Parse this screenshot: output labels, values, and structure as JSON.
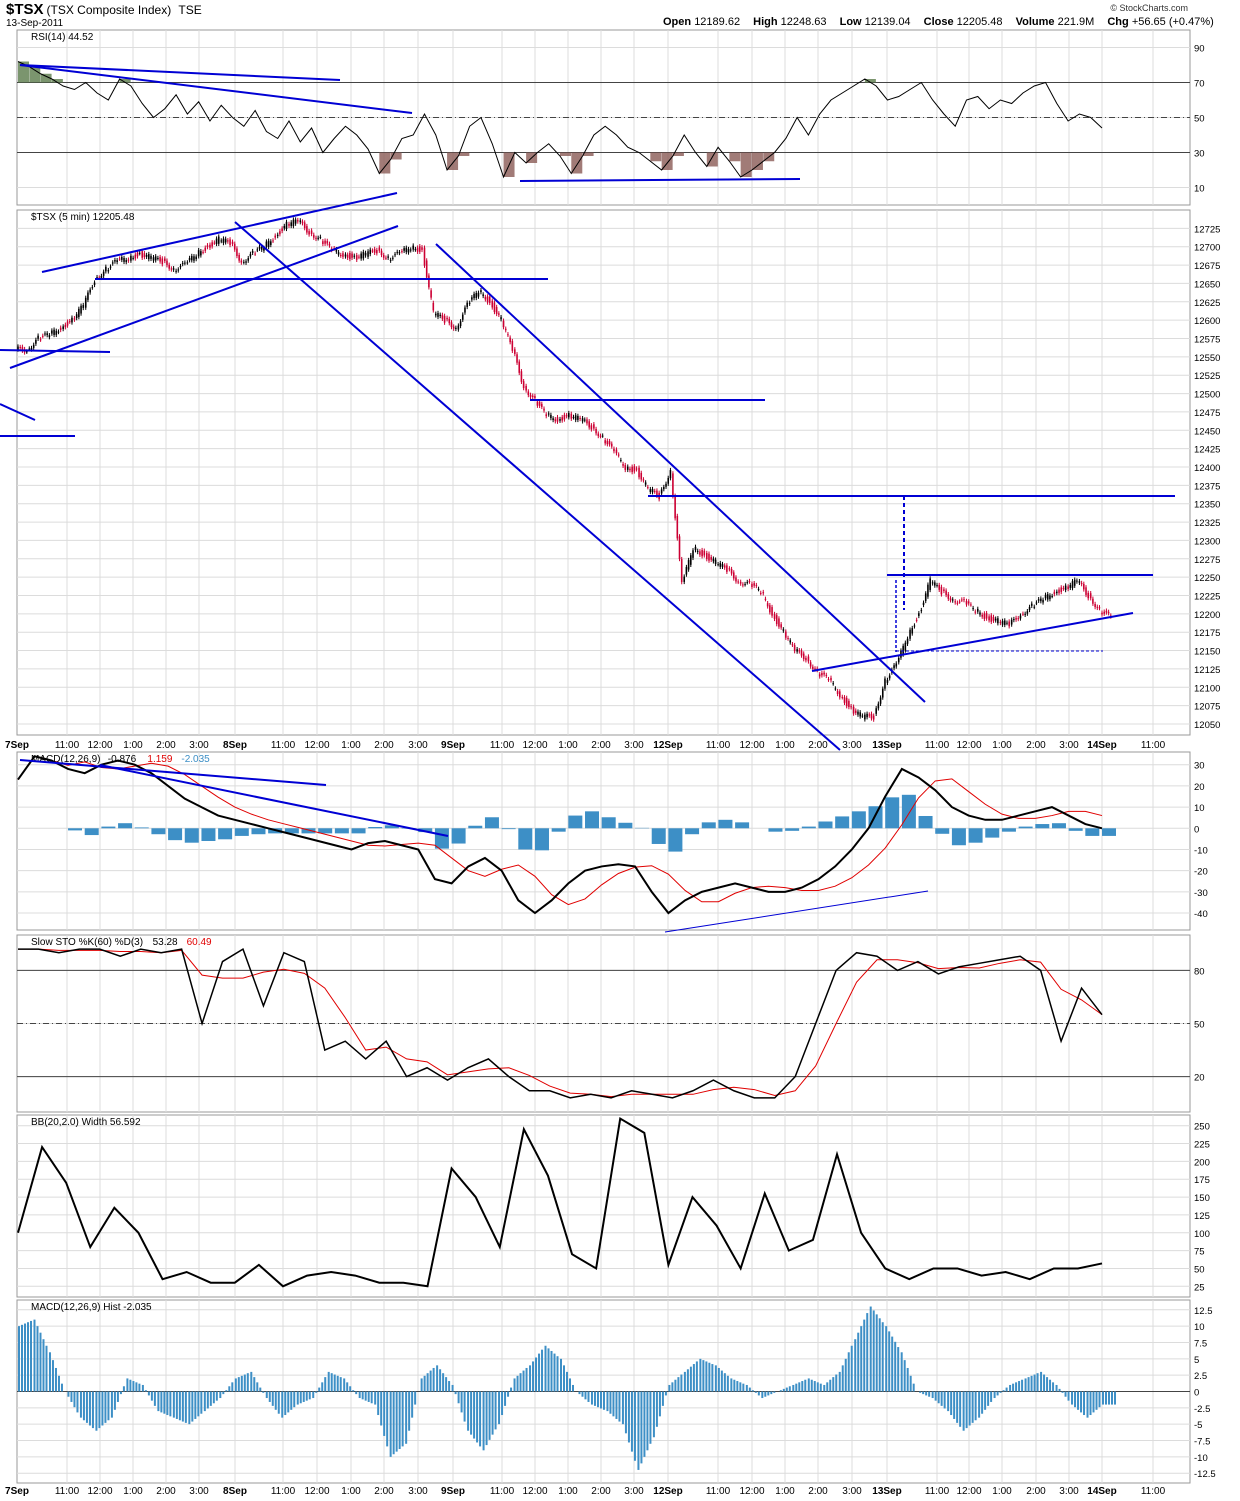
{
  "header": {
    "symbol": "$TSX",
    "name": "(TSX Composite Index)",
    "exchange": "TSE",
    "date": "13-Sep-2011",
    "copyright": "© StockCharts.com",
    "open_label": "Open",
    "open": "12189.62",
    "high_label": "High",
    "high": "12248.63",
    "low_label": "Low",
    "low": "12139.04",
    "close_label": "Close",
    "close": "12205.48",
    "volume_label": "Volume",
    "volume": "221.9M",
    "chg_label": "Chg",
    "chg": "+56.65 (+0.47%)"
  },
  "time_axis": {
    "labels": [
      "7Sep",
      "11:00",
      "12:00",
      "1:00",
      "2:00",
      "3:00",
      "8Sep",
      "11:00",
      "12:00",
      "1:00",
      "2:00",
      "3:00",
      "9Sep",
      "11:00",
      "12:00",
      "1:00",
      "2:00",
      "3:00",
      "12Sep",
      "11:00",
      "12:00",
      "1:00",
      "2:00",
      "3:00",
      "13Sep",
      "11:00",
      "12:00",
      "1:00",
      "2:00",
      "3:00",
      "14Sep",
      "11:00"
    ],
    "bold": [
      "7Sep",
      "8Sep",
      "9Sep",
      "12Sep",
      "13Sep",
      "14Sep"
    ]
  },
  "colors": {
    "trendline": "#0000d4",
    "down": "#cc0033",
    "up": "#000000",
    "hist": "#3d8fc6",
    "rsi_over": "#5a7a4a",
    "rsi_under": "#8a5a55",
    "signal": "#e00000",
    "grid": "#dcdcdc"
  },
  "chart_data": [
    {
      "type": "line",
      "panel": "rsi",
      "title": "RSI(14) 44.52",
      "ylim": [
        0,
        100
      ],
      "yticks": [
        10,
        30,
        50,
        70,
        90
      ],
      "levels": [
        30,
        70
      ],
      "last": 44.52,
      "series": [
        {
          "name": "RSI(14)",
          "values": [
            82,
            79,
            75,
            72,
            68,
            66,
            70,
            64,
            60,
            72,
            68,
            58,
            50,
            55,
            63,
            52,
            59,
            48,
            57,
            50,
            45,
            54,
            42,
            38,
            48,
            36,
            44,
            30,
            38,
            45,
            40,
            32,
            18,
            26,
            38,
            40,
            52,
            40,
            20,
            28,
            45,
            50,
            35,
            16,
            30,
            24,
            30,
            35,
            28,
            18,
            28,
            40,
            45,
            40,
            33,
            30,
            25,
            20,
            28,
            40,
            30,
            22,
            33,
            25,
            16,
            20,
            25,
            30,
            38,
            50,
            40,
            52,
            60,
            64,
            68,
            72,
            68,
            60,
            62,
            66,
            70,
            60,
            52,
            45,
            60,
            62,
            55,
            60,
            58,
            64,
            68,
            70,
            58,
            48,
            52,
            50,
            44
          ]
        }
      ]
    },
    {
      "type": "candlestick",
      "panel": "price",
      "title": "$TSX (5 min) 12205.48",
      "ylim": [
        12035,
        12750
      ],
      "yticks": [
        12050,
        12075,
        12100,
        12125,
        12150,
        12175,
        12200,
        12225,
        12250,
        12275,
        12300,
        12325,
        12350,
        12375,
        12400,
        12425,
        12450,
        12475,
        12500,
        12525,
        12550,
        12575,
        12600,
        12625,
        12650,
        12675,
        12700,
        12725
      ],
      "series": [
        {
          "name": "close",
          "values": [
            12560,
            12575,
            12580,
            12590,
            12600,
            12620,
            12655,
            12670,
            12680,
            12685,
            12690,
            12685,
            12680,
            12670,
            12675,
            12690,
            12700,
            12710,
            12705,
            12680,
            12690,
            12700,
            12715,
            12730,
            12735,
            12720,
            12710,
            12695,
            12690,
            12685,
            12690,
            12695,
            12685,
            12690,
            12700,
            12695,
            12610,
            12600,
            12590,
            12620,
            12640,
            12625,
            12600,
            12560,
            12510,
            12490,
            12470,
            12465,
            12470,
            12465,
            12455,
            12440,
            12420,
            12400,
            12395,
            12370,
            12360,
            12395,
            12240,
            12290,
            12280,
            12270,
            12260,
            12245,
            12240,
            12230,
            12200,
            12175,
            12150,
            12140,
            12120,
            12110,
            12090,
            12070,
            12060,
            12060,
            12110,
            12130,
            12170,
            12200,
            12245,
            12230,
            12220,
            12215,
            12205,
            12195,
            12190,
            12185,
            12200,
            12210,
            12220,
            12230,
            12235,
            12245,
            12225,
            12205,
            12195
          ]
        }
      ],
      "annotations": [
        "12350",
        "12250",
        "12150",
        "12500",
        "12660"
      ]
    },
    {
      "type": "line",
      "panel": "macd",
      "title": "MACD(12,26,9)",
      "values_text": [
        "-0.876",
        "1.159",
        "-2.035"
      ],
      "ylim": [
        -48,
        36
      ],
      "yticks": [
        30,
        20,
        10,
        0,
        -10,
        -20,
        -30,
        -40
      ],
      "series": [
        {
          "name": "MACD",
          "values": [
            23,
            34,
            32,
            28,
            26,
            30,
            32,
            30,
            26,
            20,
            14,
            10,
            6,
            4,
            2,
            0,
            -2,
            -4,
            -6,
            -8,
            -10,
            -7,
            -6,
            -8,
            -10,
            -24,
            -26,
            -18,
            -14,
            -20,
            -34,
            -40,
            -34,
            -26,
            -20,
            -18,
            -17,
            -18,
            -30,
            -40,
            -34,
            -30,
            -28,
            -26,
            -28,
            -30,
            -30,
            -28,
            -24,
            -18,
            -10,
            0,
            15,
            28,
            24,
            18,
            10,
            6,
            4,
            4,
            6,
            8,
            10,
            6,
            2,
            0
          ]
        }
      ]
    },
    {
      "type": "line",
      "panel": "sto",
      "title": "Slow STO %K(60) %D(3)",
      "values_text": [
        "53.28",
        "60.49"
      ],
      "ylim": [
        0,
        100
      ],
      "yticks": [
        20,
        50,
        80
      ],
      "series": [
        {
          "name": "%K",
          "values": [
            92,
            92,
            90,
            92,
            92,
            88,
            92,
            90,
            92,
            50,
            85,
            92,
            60,
            90,
            85,
            35,
            40,
            30,
            40,
            20,
            25,
            18,
            25,
            30,
            20,
            12,
            12,
            8,
            10,
            8,
            12,
            10,
            8,
            12,
            18,
            12,
            8,
            8,
            20,
            50,
            80,
            90,
            88,
            80,
            85,
            78,
            82,
            84,
            86,
            88,
            80,
            40,
            70,
            55
          ]
        }
      ]
    },
    {
      "type": "line",
      "panel": "bbw",
      "title": "BB(20,2.0) Width 56.592",
      "ylim": [
        10,
        265
      ],
      "yticks": [
        25,
        50,
        75,
        100,
        125,
        150,
        175,
        200,
        225,
        250
      ],
      "series": [
        {
          "name": "Width",
          "values": [
            100,
            220,
            170,
            80,
            135,
            100,
            35,
            45,
            30,
            30,
            55,
            25,
            40,
            45,
            40,
            30,
            30,
            25,
            190,
            150,
            80,
            245,
            180,
            70,
            50,
            260,
            240,
            55,
            150,
            110,
            50,
            155,
            75,
            90,
            210,
            100,
            50,
            35,
            50,
            50,
            40,
            45,
            35,
            50,
            50,
            57
          ]
        }
      ]
    },
    {
      "type": "bar",
      "panel": "hist",
      "title": "MACD(12,26,9) Hist -2.035",
      "ylim": [
        -14,
        14
      ],
      "yticks": [
        12.5,
        10,
        7.5,
        5,
        2.5,
        0,
        -2.5,
        -5,
        -7.5,
        -10,
        -12.5
      ],
      "series": [
        {
          "name": "Hist",
          "values": [
            10,
            11,
            6,
            0,
            -4,
            -6,
            -4,
            2,
            1,
            -3,
            -4,
            -5,
            -3,
            -1,
            2,
            3,
            -1,
            -4,
            -2,
            -1,
            3,
            2,
            -1,
            -2,
            -10,
            -8,
            2,
            4,
            1,
            -6,
            -9,
            -5,
            2,
            4,
            7,
            5,
            0,
            -2,
            -3,
            -5,
            -12,
            -7,
            1,
            3,
            5,
            4,
            2,
            1,
            -1,
            0,
            1,
            2,
            1,
            3,
            8,
            13,
            10,
            6,
            0,
            -1,
            -3,
            -6,
            -4,
            -1,
            1,
            2,
            3,
            1,
            -2,
            -4,
            -2
          ]
        }
      ]
    }
  ]
}
